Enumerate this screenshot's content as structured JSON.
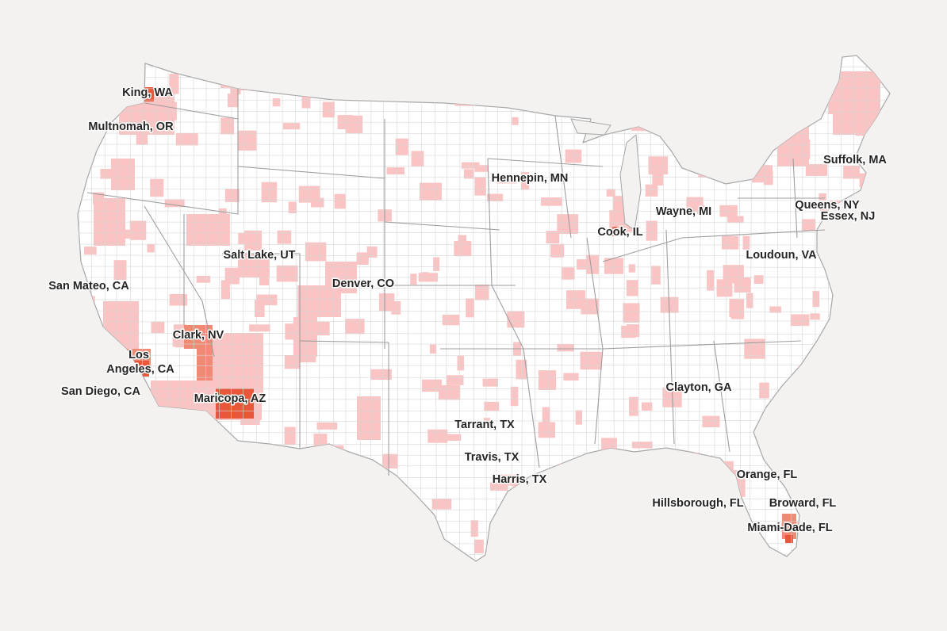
{
  "map": {
    "colors": {
      "background": "#f3f2f1",
      "land": "#ffffff",
      "border": "#b8b8b8",
      "low": "#f9c4c3",
      "medium": "#f08a74",
      "high": "#e8573a"
    },
    "labels": [
      {
        "text": "King, WA",
        "level": "high"
      },
      {
        "text": "Multnomah, OR",
        "level": "low"
      },
      {
        "text": "San Mateo, CA",
        "level": "low"
      },
      {
        "text": "Salt Lake, UT",
        "level": "low"
      },
      {
        "text": "Denver, CO",
        "level": "low"
      },
      {
        "text": "Clark, NV",
        "level": "medium"
      },
      {
        "text": "Los",
        "level": "high"
      },
      {
        "text": "Angeles, CA",
        "level": "high"
      },
      {
        "text": "San Diego, CA",
        "level": "low"
      },
      {
        "text": "Maricopa, AZ",
        "level": "high"
      },
      {
        "text": "Hennepin, MN",
        "level": "low"
      },
      {
        "text": "Cook, IL",
        "level": "high"
      },
      {
        "text": "Wayne, MI",
        "level": "low"
      },
      {
        "text": "Suffolk, MA",
        "level": "low"
      },
      {
        "text": "Queens, NY",
        "level": "low"
      },
      {
        "text": "Essex, NJ",
        "level": "low"
      },
      {
        "text": "Loudoun, VA",
        "level": "low"
      },
      {
        "text": "Clayton, GA",
        "level": "low"
      },
      {
        "text": "Tarrant, TX",
        "level": "low"
      },
      {
        "text": "Travis, TX",
        "level": "low"
      },
      {
        "text": "Harris, TX",
        "level": "low"
      },
      {
        "text": "Orange, FL",
        "level": "low"
      },
      {
        "text": "Hillsborough, FL",
        "level": "low"
      },
      {
        "text": "Broward, FL",
        "level": "low"
      },
      {
        "text": "Miami-Dade, FL",
        "level": "high"
      }
    ]
  }
}
